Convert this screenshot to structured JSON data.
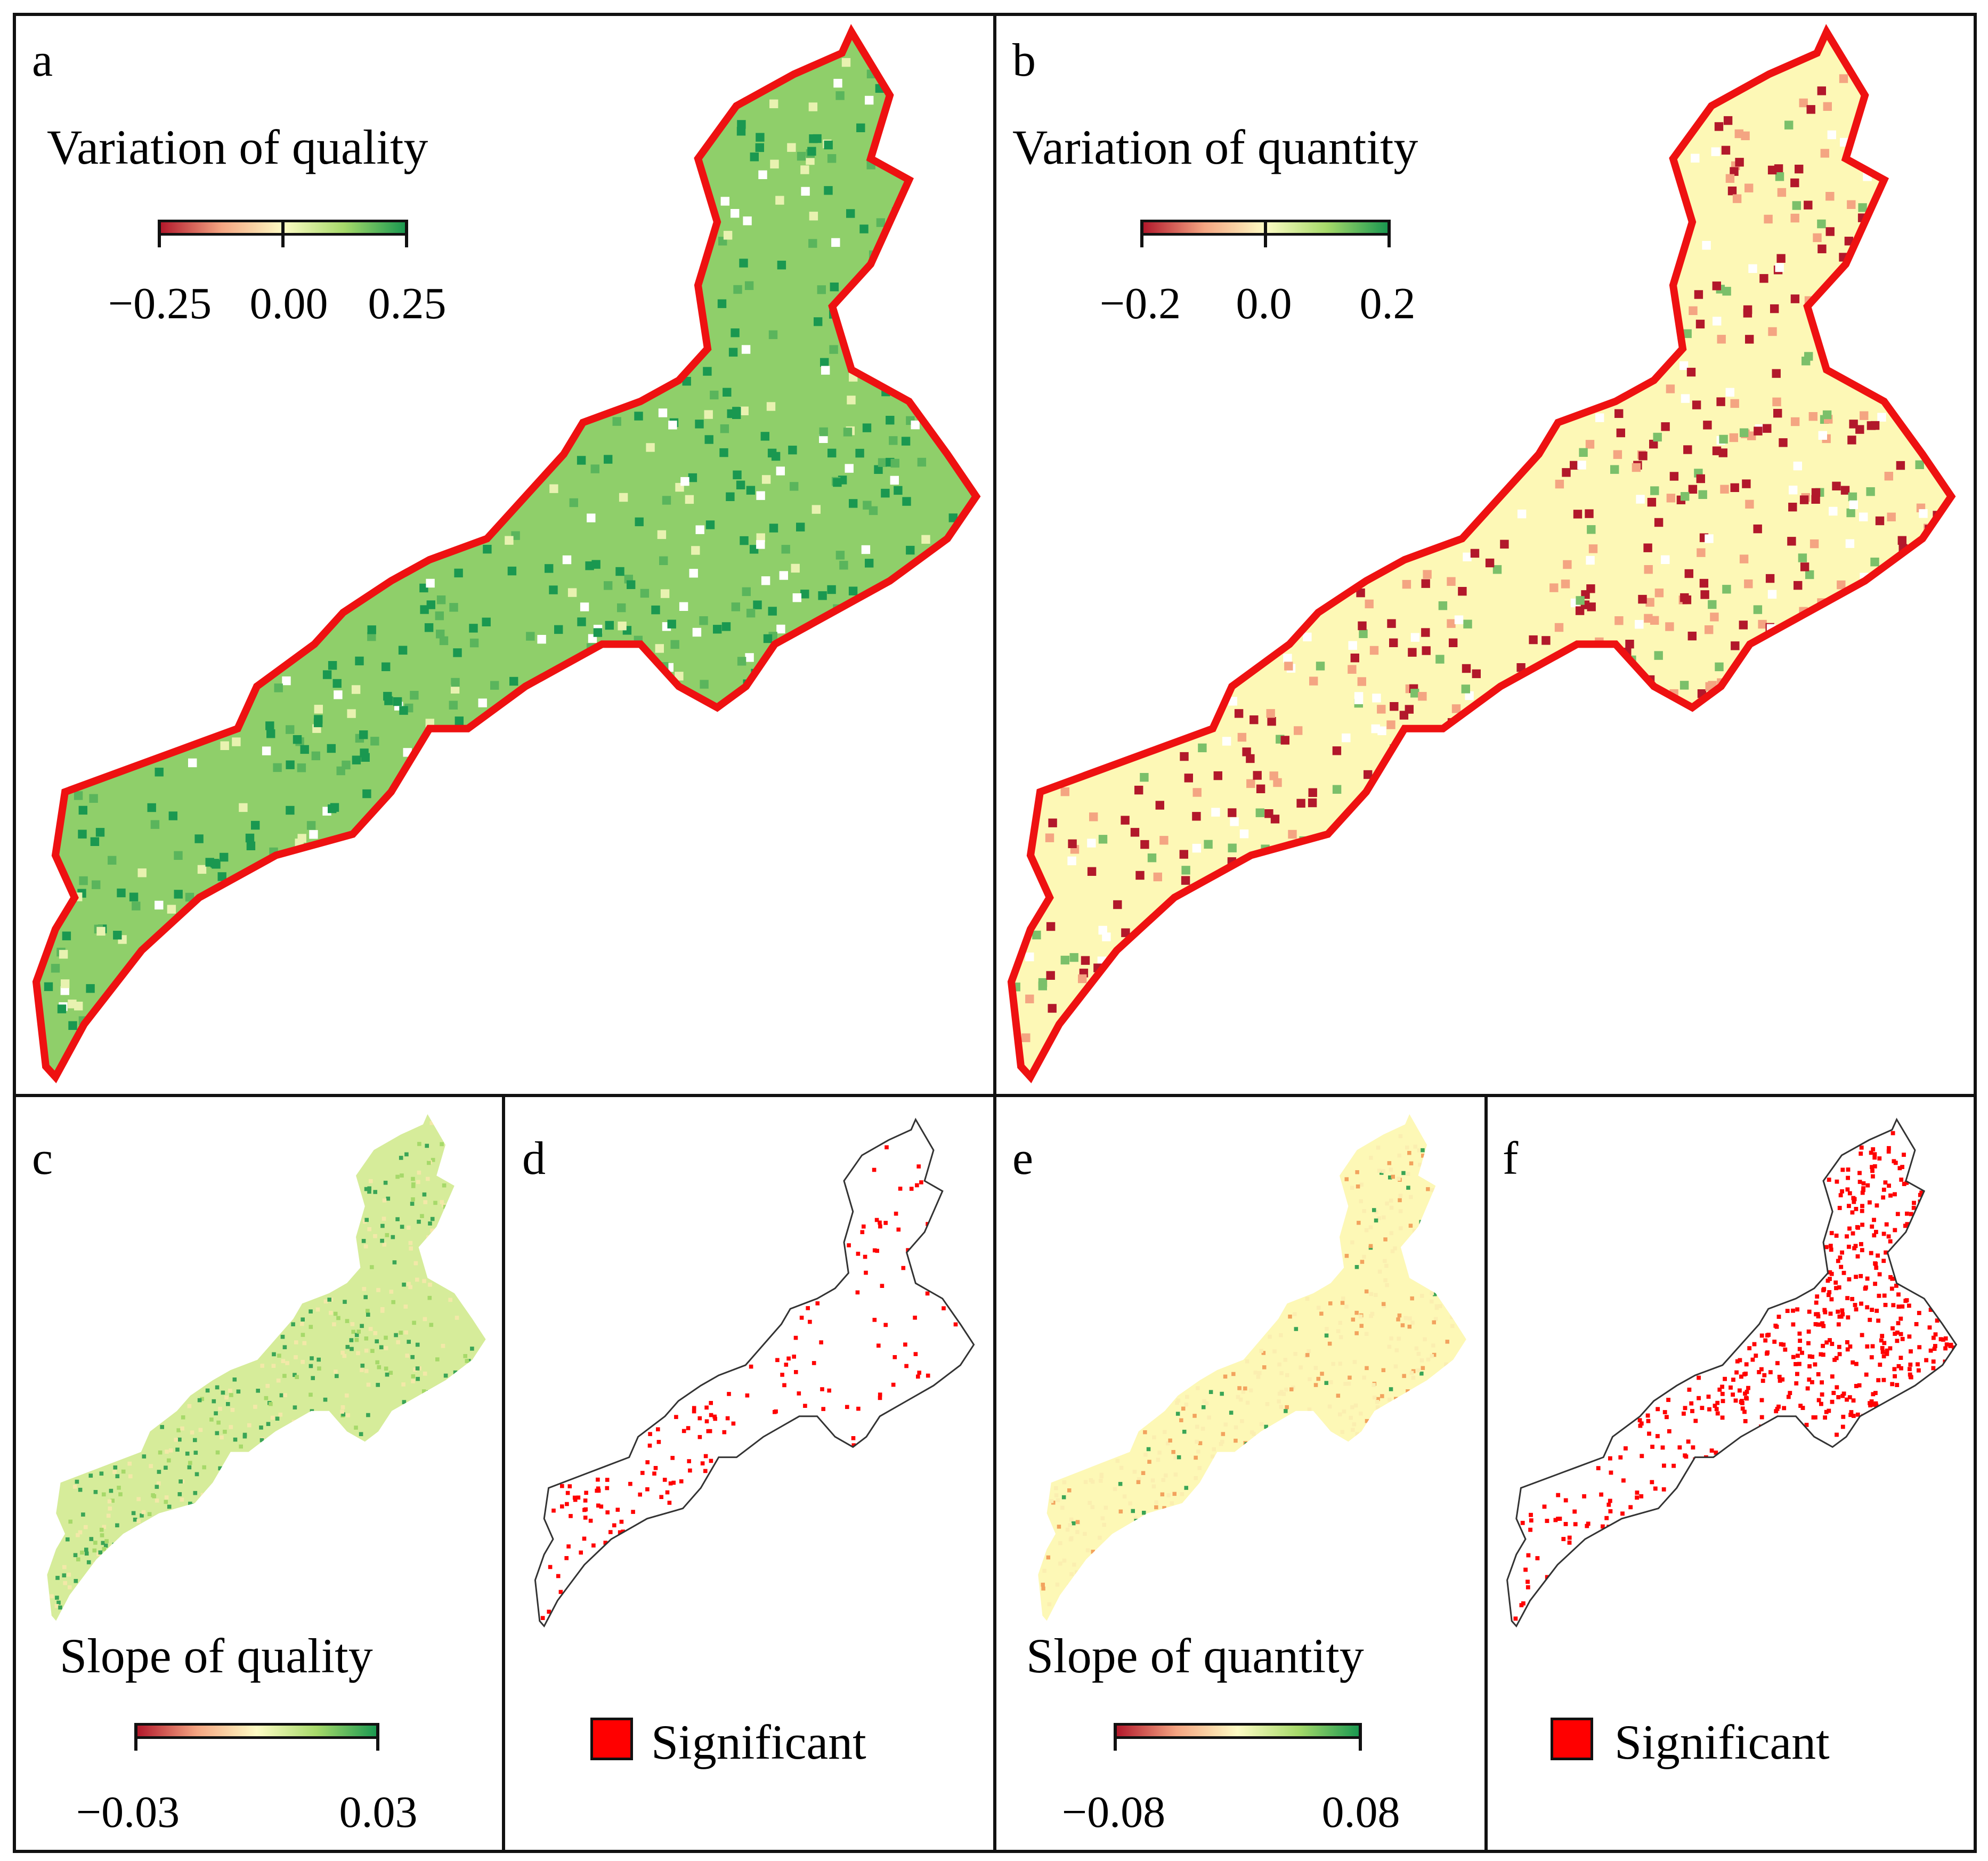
{
  "colors": {
    "ramp_low": "#b2182b",
    "ramp_mid_low": "#f4a582",
    "ramp_center": "#fdfbc4",
    "ramp_mid_high": "#a6d96a",
    "ramp_high": "#1a9850",
    "region_outline": "#ee1111",
    "significant": "#ff0000",
    "thin_outline": "#333333"
  },
  "panels": [
    {
      "id": "a",
      "letter": "a",
      "legend_title": "Variation of quality",
      "ticks": [
        "−0.25",
        "0.00",
        "0.25"
      ],
      "fill": "green"
    },
    {
      "id": "b",
      "letter": "b",
      "legend_title": "Variation of quantity",
      "ticks": [
        "−0.2",
        "0.0",
        "0.2"
      ],
      "fill": "yellow"
    },
    {
      "id": "c",
      "letter": "c",
      "legend_title": "Slope of quality",
      "ticks": [
        "−0.03",
        "0.03"
      ],
      "fill": "lightgreen"
    },
    {
      "id": "d",
      "letter": "d",
      "legend_label": "Significant",
      "fill": "sig"
    },
    {
      "id": "e",
      "letter": "e",
      "legend_title": "Slope of quantity",
      "ticks": [
        "−0.08",
        "0.08"
      ],
      "fill": "paleyellow"
    },
    {
      "id": "f",
      "letter": "f",
      "legend_label": "Significant",
      "fill": "sig-dense"
    }
  ]
}
